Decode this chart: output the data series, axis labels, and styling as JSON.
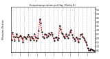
{
  "title": "Evapotranspiration per Day (Oz/sq ft)",
  "ylabel_left": "Milwaukee Weather",
  "ylim": [
    0.3,
    5.8
  ],
  "line_color": "#dd0000",
  "marker_color": "#000000",
  "background_color": "#ffffff",
  "grid_color": "#808080",
  "values": [
    1.8,
    2.7,
    2.2,
    1.7,
    2.2,
    2.5,
    2.1,
    1.7,
    2.3,
    2.3,
    2.0,
    1.5,
    2.2,
    2.1,
    1.9,
    2.2,
    2.4,
    2.2,
    1.8,
    2.2,
    2.0,
    1.8,
    2.5,
    2.1,
    1.7,
    2.0,
    2.9,
    4.3,
    3.8,
    2.8,
    2.2,
    2.0,
    2.5,
    2.4,
    2.1,
    2.3,
    2.6,
    2.4,
    2.7,
    2.4,
    2.0,
    1.7,
    2.1,
    2.1,
    1.8,
    2.0,
    3.5,
    3.1,
    2.6,
    2.5,
    2.2,
    2.0,
    2.5,
    2.3,
    2.0,
    2.4,
    2.8,
    3.0,
    2.4,
    2.1,
    1.9,
    1.7,
    2.1,
    1.9,
    1.5,
    1.9,
    2.4,
    2.5,
    2.2,
    2.0,
    1.8,
    1.5,
    1.2,
    0.8,
    0.5,
    0.5,
    0.7,
    0.6,
    0.5,
    0.4
  ],
  "x_tick_positions": [
    0,
    8,
    16,
    24,
    32,
    40,
    48,
    56,
    64,
    72
  ],
  "x_tick_labels": [
    "J",
    "J",
    "J",
    "J",
    "J",
    "J",
    "J",
    "J",
    "J",
    "J"
  ],
  "vgrid_positions": [
    4,
    8,
    12,
    16,
    20,
    24,
    28,
    32,
    36,
    40,
    44,
    48,
    52,
    56,
    60,
    64,
    68,
    72,
    76
  ],
  "ytick_vals": [
    0.5,
    1.0,
    1.5,
    2.0,
    2.5,
    3.0,
    3.5,
    4.0,
    4.5,
    5.0,
    5.5
  ]
}
